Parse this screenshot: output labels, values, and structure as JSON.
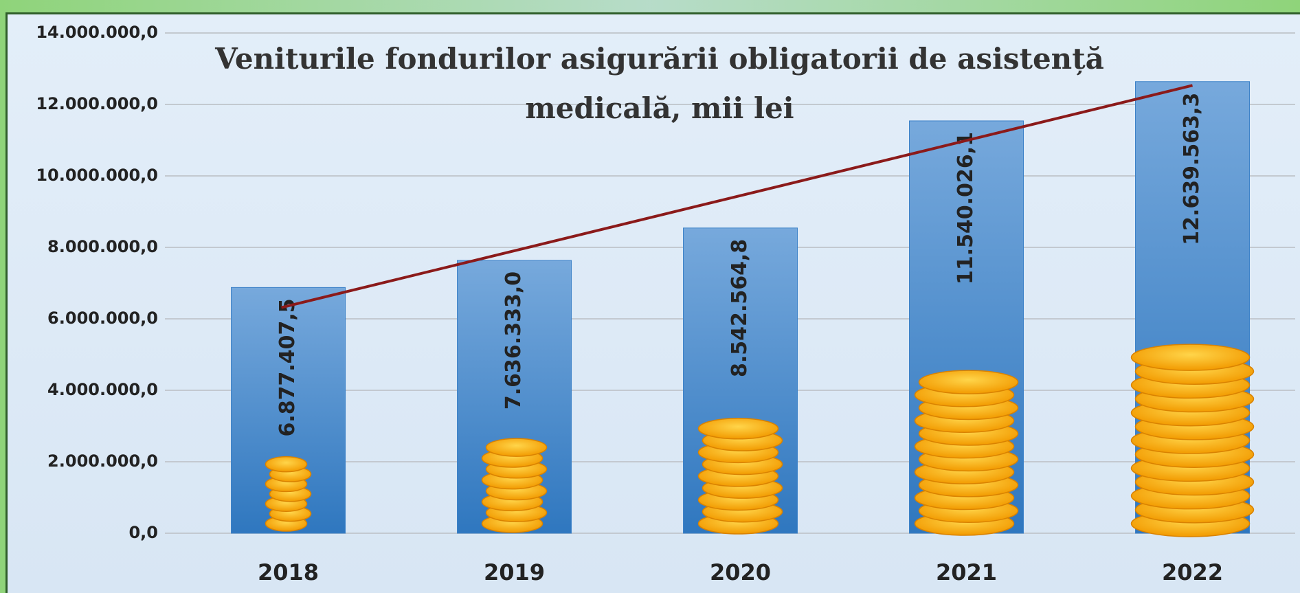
{
  "chart_data": {
    "type": "bar",
    "title": "Veniturile fondurilor asigurării obligatorii de asistență medicală, mii lei",
    "categories": [
      "2018",
      "2019",
      "2020",
      "2021",
      "2022"
    ],
    "values": [
      6877407.5,
      7636333.0,
      8542564.8,
      11540026.1,
      12639563.3
    ],
    "value_labels": [
      "6.877.407,5",
      "7.636.333,0",
      "8.542.564,8",
      "11.540.026,1",
      "12.639.563,3"
    ],
    "color": "#3d82c8",
    "trendline_color": "#8b1a1a",
    "ylim": [
      0,
      14000000
    ],
    "yticks": [
      {
        "value": 0,
        "label": "0,0"
      },
      {
        "value": 2000000,
        "label": "2.000.000,0"
      },
      {
        "value": 4000000,
        "label": "4.000.000,0"
      },
      {
        "value": 6000000,
        "label": "6.000.000,0"
      },
      {
        "value": 8000000,
        "label": "8.000.000,0"
      },
      {
        "value": 10000000,
        "label": "10.000.000,0"
      },
      {
        "value": 12000000,
        "label": "12.000.000,0"
      },
      {
        "value": 14000000,
        "label": "14.000.000,0"
      }
    ],
    "grid": true
  }
}
